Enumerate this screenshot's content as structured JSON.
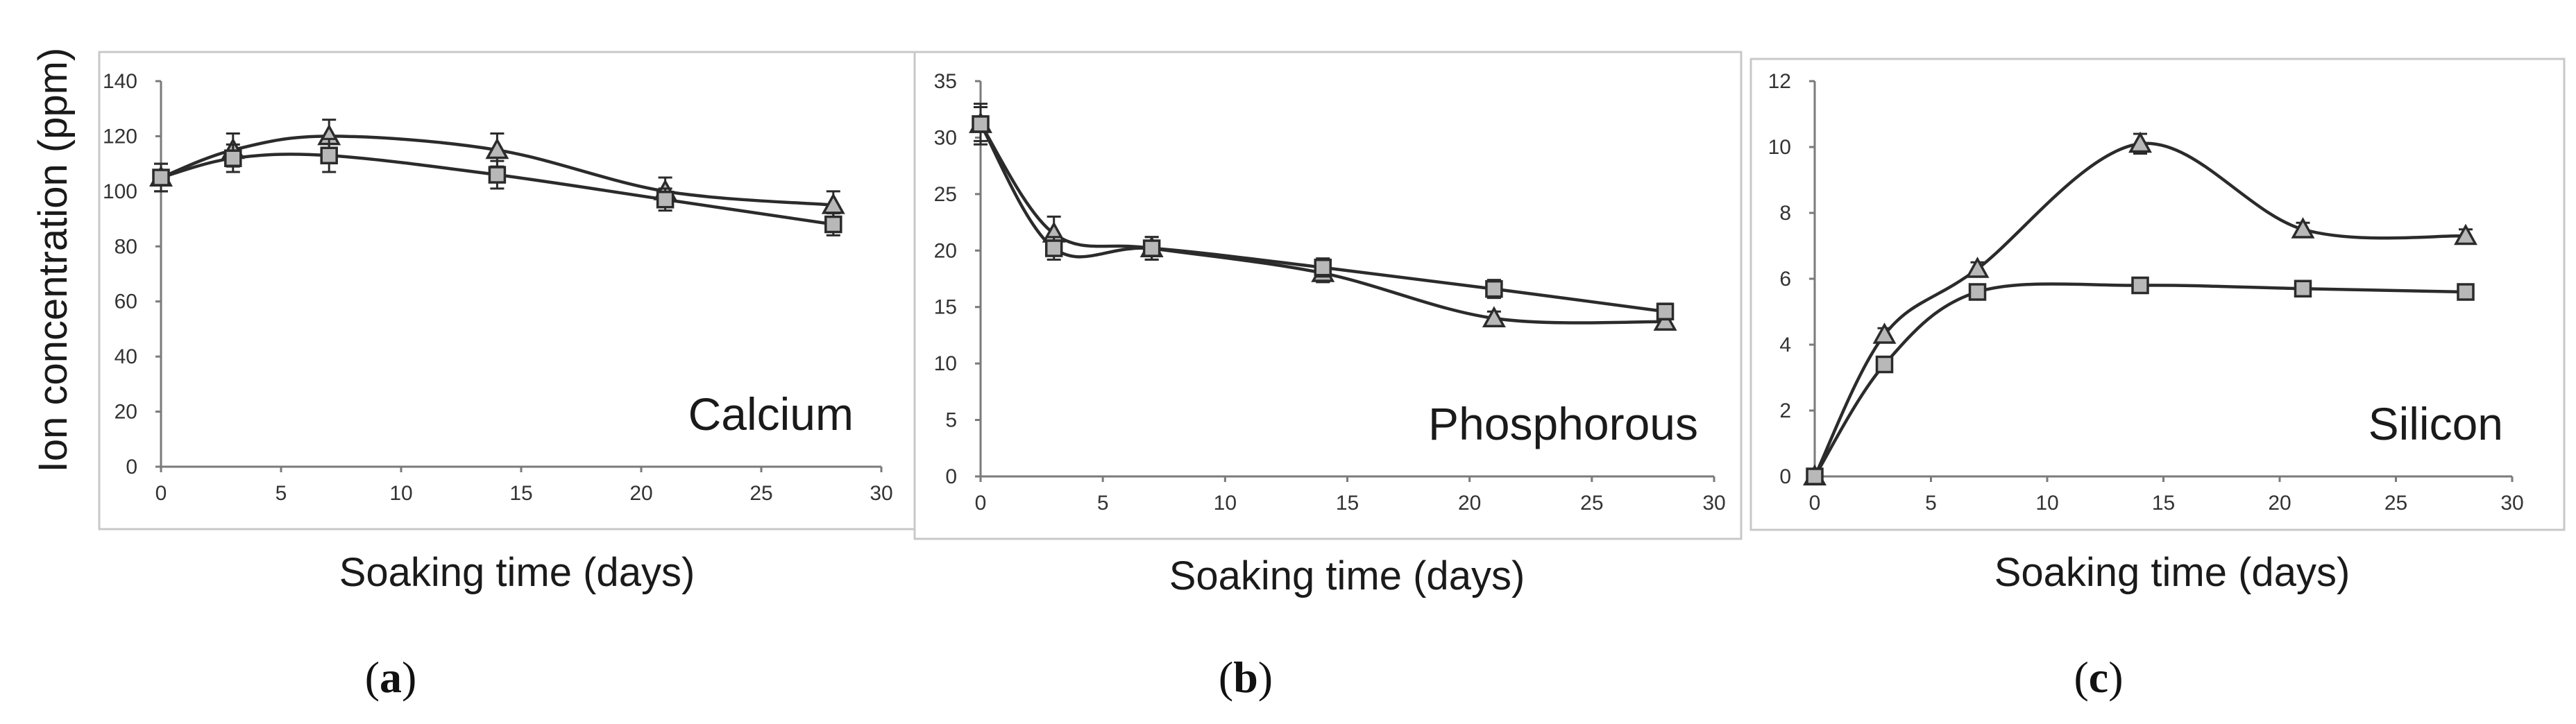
{
  "figure": {
    "shared_ylabel": "Ion concentration (ppm)",
    "colors": {
      "line": "#2b2b2b",
      "marker_fill": "#b8b8b8",
      "frame": "#c8c8c8",
      "axis": "#7a7a7a"
    }
  },
  "chart_data": [
    {
      "type": "line",
      "panel": "a",
      "panel_label": "a",
      "title": "Calcium",
      "xlabel": "Soaking time (days)",
      "ylabel": "Ion concentration (ppm)",
      "xlim": [
        0,
        30
      ],
      "ylim": [
        0,
        140
      ],
      "xticks": [
        0,
        5,
        10,
        15,
        20,
        25,
        30
      ],
      "yticks": [
        0,
        20,
        40,
        60,
        80,
        100,
        120,
        140
      ],
      "x": [
        0,
        3,
        7,
        14,
        21,
        28
      ],
      "series": [
        {
          "name": "triangle",
          "marker": "triangle",
          "values": [
            105,
            115,
            120,
            115,
            100,
            95
          ],
          "errors": [
            5,
            6,
            6,
            6,
            5,
            5
          ]
        },
        {
          "name": "square",
          "marker": "square",
          "values": [
            105,
            112,
            113,
            106,
            97,
            88
          ],
          "errors": [
            5,
            5,
            6,
            5,
            4,
            4
          ]
        }
      ]
    },
    {
      "type": "line",
      "panel": "b",
      "panel_label": "b",
      "title": "Phosphorous",
      "xlabel": "Soaking time (days)",
      "ylabel": "",
      "xlim": [
        0,
        30
      ],
      "ylim": [
        0,
        35
      ],
      "xticks": [
        0,
        5,
        10,
        15,
        20,
        25,
        30
      ],
      "yticks": [
        0,
        5,
        10,
        15,
        20,
        25,
        30,
        35
      ],
      "x": [
        0,
        3,
        7,
        14,
        21,
        28
      ],
      "series": [
        {
          "name": "triangle",
          "marker": "triangle",
          "values": [
            31.2,
            21.5,
            20.2,
            18.0,
            14.0,
            13.7
          ],
          "errors": [
            1.5,
            1.5,
            1.0,
            0.8,
            0.6,
            0.6
          ]
        },
        {
          "name": "square",
          "marker": "square",
          "values": [
            31.2,
            20.2,
            20.2,
            18.5,
            16.6,
            14.6
          ],
          "errors": [
            1.8,
            1.0,
            1.0,
            0.8,
            0.8,
            0.7
          ]
        }
      ]
    },
    {
      "type": "line",
      "panel": "c",
      "panel_label": "c",
      "title": "Silicon",
      "xlabel": "Soaking time (days)",
      "ylabel": "",
      "xlim": [
        0,
        30
      ],
      "ylim": [
        0,
        12
      ],
      "xticks": [
        0,
        5,
        10,
        15,
        20,
        25,
        30
      ],
      "yticks": [
        0,
        2,
        4,
        6,
        8,
        10,
        12
      ],
      "x": [
        0,
        3,
        7,
        14,
        21,
        28
      ],
      "series": [
        {
          "name": "triangle",
          "marker": "triangle",
          "values": [
            0,
            4.3,
            6.3,
            10.1,
            7.5,
            7.3
          ],
          "errors": [
            0.1,
            0.2,
            0.2,
            0.3,
            0.2,
            0.2
          ]
        },
        {
          "name": "square",
          "marker": "square",
          "values": [
            0,
            3.4,
            5.6,
            5.8,
            5.7,
            5.6
          ],
          "errors": [
            0.1,
            0.2,
            0.2,
            0.2,
            0.2,
            0.2
          ]
        }
      ]
    }
  ]
}
